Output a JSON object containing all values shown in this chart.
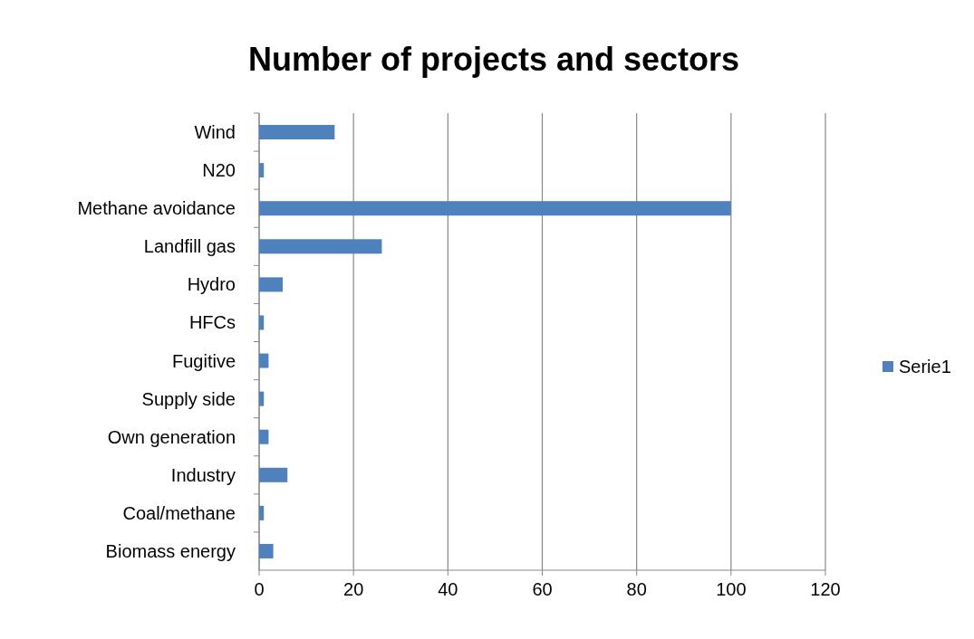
{
  "chart_data": {
    "type": "bar",
    "title": "Number of projects and sectors",
    "orientation": "horizontal",
    "categories": [
      "Wind",
      "N20",
      "Methane avoidance",
      "Landfill gas",
      "Hydro",
      "HFCs",
      "Fugitive",
      "Supply side",
      "Own generation",
      "Industry",
      "Coal/methane",
      "Biomass energy"
    ],
    "series": [
      {
        "name": "Serie1",
        "color": "#4f81bd",
        "values": [
          16,
          1,
          100,
          26,
          5,
          1,
          2,
          1,
          2,
          6,
          1,
          3
        ]
      }
    ],
    "xlim": [
      0,
      120
    ],
    "xticks": [
      0,
      20,
      40,
      60,
      80,
      100,
      120
    ],
    "grid": "x",
    "legend": "right"
  }
}
